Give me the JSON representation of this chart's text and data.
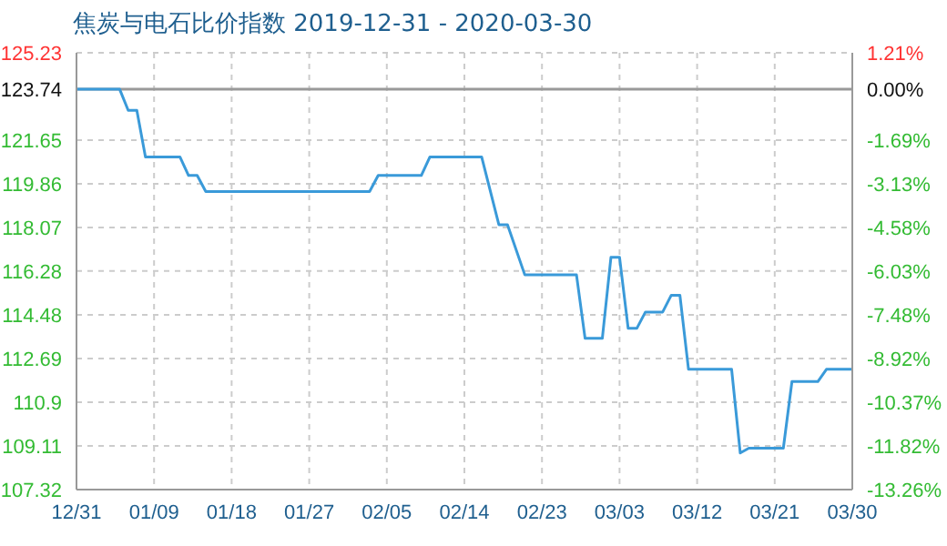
{
  "chart_data": {
    "type": "line",
    "title": "焦炭与电石比价指数 2019-12-31 - 2020-03-30",
    "x": [
      "2019-12-31",
      "2020-01-05",
      "2020-01-06",
      "2020-01-07",
      "2020-01-08",
      "2020-01-12",
      "2020-01-13",
      "2020-01-14",
      "2020-01-15",
      "2020-02-03",
      "2020-02-04",
      "2020-02-09",
      "2020-02-10",
      "2020-02-16",
      "2020-02-18",
      "2020-02-19",
      "2020-02-21",
      "2020-02-27",
      "2020-02-28",
      "2020-03-01",
      "2020-03-02",
      "2020-03-03",
      "2020-03-04",
      "2020-03-05",
      "2020-03-06",
      "2020-03-08",
      "2020-03-09",
      "2020-03-10",
      "2020-03-11",
      "2020-03-16",
      "2020-03-17",
      "2020-03-18",
      "2020-03-22",
      "2020-03-23",
      "2020-03-26",
      "2020-03-27",
      "2020-03-30"
    ],
    "series": [
      {
        "color": "#3a9ad9",
        "values": [
          123.74,
          123.74,
          122.87,
          122.87,
          120.96,
          120.96,
          120.2,
          120.2,
          119.54,
          119.54,
          120.2,
          120.2,
          120.96,
          120.96,
          118.18,
          118.18,
          116.13,
          116.13,
          113.52,
          113.52,
          116.84,
          116.84,
          113.93,
          113.93,
          114.6,
          114.6,
          115.29,
          115.29,
          112.25,
          112.25,
          108.82,
          109.02,
          109.02,
          111.75,
          111.75,
          112.25,
          112.25
        ]
      }
    ],
    "xlim": [
      "2019-12-31",
      "2020-03-30"
    ],
    "xticks": [
      {
        "value": "2019-12-31",
        "label": "12/31"
      },
      {
        "value": "2020-01-09",
        "label": "01/09"
      },
      {
        "value": "2020-01-18",
        "label": "01/18"
      },
      {
        "value": "2020-01-27",
        "label": "01/27"
      },
      {
        "value": "2020-02-05",
        "label": "02/05"
      },
      {
        "value": "2020-02-14",
        "label": "02/14"
      },
      {
        "value": "2020-02-23",
        "label": "02/23"
      },
      {
        "value": "2020-03-03",
        "label": "03/03"
      },
      {
        "value": "2020-03-12",
        "label": "03/12"
      },
      {
        "value": "2020-03-21",
        "label": "03/21"
      },
      {
        "value": "2020-03-30",
        "label": "03/30"
      }
    ],
    "ylim": [
      107.32,
      125.23
    ],
    "yticks": [
      107.32,
      109.11,
      110.9,
      112.69,
      114.48,
      116.28,
      118.07,
      119.86,
      121.65,
      123.74,
      125.23
    ],
    "y2lim": [
      -13.26,
      1.21
    ],
    "y2ticks": [
      {
        "value": -13.26,
        "label": "-13.26%"
      },
      {
        "value": -11.82,
        "label": "-11.82%"
      },
      {
        "value": -10.37,
        "label": "-10.37%"
      },
      {
        "value": -8.92,
        "label": "-8.92%"
      },
      {
        "value": -7.48,
        "label": "-7.48%"
      },
      {
        "value": -6.03,
        "label": "-6.03%"
      },
      {
        "value": -4.58,
        "label": "-4.58%"
      },
      {
        "value": -3.13,
        "label": "-3.13%"
      },
      {
        "value": -1.69,
        "label": "-1.69%"
      },
      {
        "value": 0,
        "label": "0.00%"
      },
      {
        "value": 1.21,
        "label": "1.21%"
      }
    ],
    "ref_lines": [
      {
        "axis": "y",
        "value": 123.74,
        "color": "#999999"
      }
    ],
    "grid": true,
    "legend": false,
    "marker": "none",
    "line_style": "solid"
  }
}
